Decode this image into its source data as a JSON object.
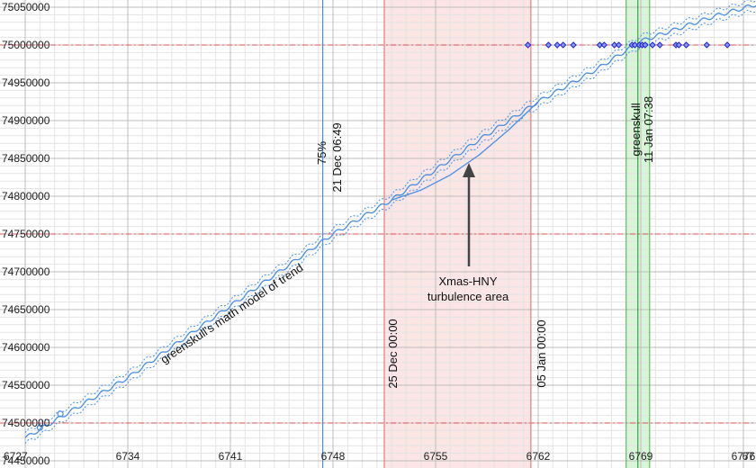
{
  "chart_data": {
    "type": "line",
    "xlim": [
      6727,
      6782
    ],
    "ylim": [
      74450000,
      75060000
    ],
    "x_ticks": [
      "6727",
      "6734",
      "6741",
      "6748",
      "6755",
      "6762",
      "6769",
      "6776",
      "67"
    ],
    "y_ticks": [
      "75050000",
      "75000000",
      "74950000",
      "74900000",
      "74850000",
      "74800000",
      "74750000",
      "74700000",
      "74650000",
      "74600000",
      "74550000",
      "74500000",
      "74450000"
    ],
    "grid": true,
    "series": [
      {
        "role": "trend-center",
        "style": "solid",
        "color": "#4a90e2",
        "x": [
          6727,
          6734,
          6741,
          6748,
          6752,
          6755,
          6758,
          6762,
          6766,
          6769,
          6774,
          6779
        ],
        "y": [
          74480000,
          74560000,
          74655000,
          74750000,
          74795000,
          74835000,
          74875000,
          74925000,
          74968000,
          75005000,
          75038000,
          75065000
        ]
      },
      {
        "role": "trend-upper",
        "style": "dotted",
        "color": "#4a90e2",
        "x": [
          6727,
          6734,
          6741,
          6748,
          6752,
          6755,
          6758,
          6762,
          6766,
          6769,
          6774,
          6779
        ],
        "y": [
          74487000,
          74567000,
          74662000,
          74757000,
          74802000,
          74842000,
          74882000,
          74932000,
          74975000,
          75012000,
          75045000,
          75072000
        ]
      },
      {
        "role": "trend-lower",
        "style": "dotted",
        "color": "#4a90e2",
        "x": [
          6727,
          6734,
          6741,
          6748,
          6752,
          6755,
          6758,
          6762,
          6766,
          6769,
          6774,
          6779
        ],
        "y": [
          74473000,
          74553000,
          74648000,
          74743000,
          74788000,
          74828000,
          74868000,
          74918000,
          74961000,
          74998000,
          75031000,
          75058000
        ]
      },
      {
        "role": "turbulence-curve",
        "style": "solid",
        "color": "#4a90e2",
        "x": [
          6752,
          6754,
          6756,
          6758,
          6760,
          6762
        ],
        "y": [
          74795000,
          74808000,
          74828000,
          74855000,
          74888000,
          74925000
        ]
      }
    ],
    "early_points": {
      "color": "#4a90e2",
      "x": [
        6728,
        6729.4
      ],
      "y": [
        74494000,
        74512000
      ]
    },
    "diamond_points": {
      "color": "#2222cc",
      "y": 75000000,
      "x": [
        6761.3,
        6762.7,
        6763.3,
        6763.7,
        6764.4,
        6766.2,
        6766.5,
        6767.2,
        6767.5,
        6768.4,
        6768.6,
        6768.9,
        6769.1,
        6769.3,
        6769.8,
        6770.3,
        6771.4,
        6771.6,
        6772.1,
        6773.5,
        6774.9
      ]
    },
    "reference_lines": [
      74500000,
      74750000,
      75000000
    ],
    "bands": [
      {
        "x0": 6751.5,
        "x1": 6761.5,
        "color": "#f8d0d0"
      },
      {
        "x0": 6768.0,
        "x1": 6769.6,
        "color": "#b8ecb8"
      }
    ],
    "vlines": [
      {
        "x": 6747.3,
        "color": "#4a90e2"
      },
      {
        "x": 6751.5,
        "color": "#e08080"
      },
      {
        "x": 6761.5,
        "color": "#e08080"
      },
      {
        "x": 6768.0,
        "color": "#60c060"
      },
      {
        "x": 6768.8,
        "color": "#40a040"
      },
      {
        "x": 6769.6,
        "color": "#60c060"
      }
    ],
    "annotations": {
      "milestone_pct": "75%",
      "milestone_date": "21 Dec 06:49",
      "xmas_start": "25 Dec 00:00",
      "jan_end": "05 Jan 00:00",
      "greenskull_label": "greenskull",
      "greenskull_date": "11 Jan 07:38",
      "turbulence_line1": "Xmas-HNY",
      "turbulence_line2": "turbulence area",
      "trend_model": "greenskull's math model of trend"
    }
  }
}
